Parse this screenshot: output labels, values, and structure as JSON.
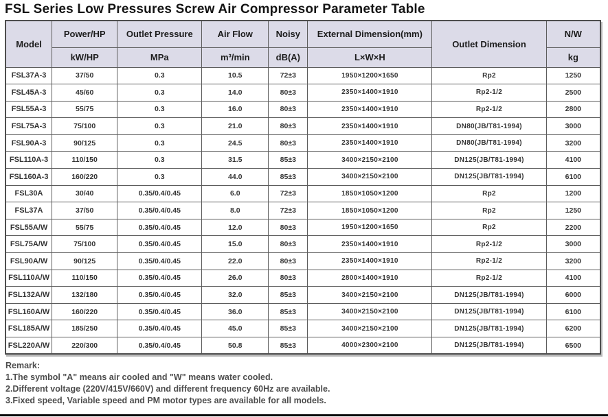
{
  "page": {
    "title": "FSL Series Low Pressures Screw Air Compressor Parameter Table"
  },
  "colors": {
    "header_bg": "#dcdbe8",
    "border": "#5c5c5c",
    "body_text": "#333333",
    "remark_text": "#4d4d4d"
  },
  "table": {
    "headers": {
      "model": "Model",
      "power": "Power/HP",
      "power_unit": "kW/HP",
      "pressure": "Outlet Pressure",
      "pressure_unit": "MPa",
      "airflow": "Air Flow",
      "airflow_unit": "m³/min",
      "noisy": "Noisy",
      "noisy_unit": "dB(A)",
      "external": "External Dimension(mm)",
      "external_unit": "L×W×H",
      "outlet": "Outlet Dimension",
      "nw": "N/W",
      "nw_unit": "kg"
    },
    "column_keys": [
      "model",
      "power",
      "pressure",
      "airflow",
      "noisy",
      "external",
      "outlet",
      "nw"
    ],
    "rows": [
      [
        "FSL37A-3",
        "37/50",
        "0.3",
        "10.5",
        "72±3",
        "1950×1200×1650",
        "Rp2",
        "1250"
      ],
      [
        "FSL45A-3",
        "45/60",
        "0.3",
        "14.0",
        "80±3",
        "2350×1400×1910",
        "Rp2-1/2",
        "2500"
      ],
      [
        "FSL55A-3",
        "55/75",
        "0.3",
        "16.0",
        "80±3",
        "2350×1400×1910",
        "Rp2-1/2",
        "2800"
      ],
      [
        "FSL75A-3",
        "75/100",
        "0.3",
        "21.0",
        "80±3",
        "2350×1400×1910",
        "DN80(JB/T81-1994)",
        "3000"
      ],
      [
        "FSL90A-3",
        "90/125",
        "0.3",
        "24.5",
        "80±3",
        "2350×1400×1910",
        "DN80(JB/T81-1994)",
        "3200"
      ],
      [
        "FSL110A-3",
        "110/150",
        "0.3",
        "31.5",
        "85±3",
        "3400×2150×2100",
        "DN125(JB/T81-1994)",
        "4100"
      ],
      [
        "FSL160A-3",
        "160/220",
        "0.3",
        "44.0",
        "85±3",
        "3400×2150×2100",
        "DN125(JB/T81-1994)",
        "6100"
      ],
      [
        "FSL30A",
        "30/40",
        "0.35/0.4/0.45",
        "6.0",
        "72±3",
        "1850×1050×1200",
        "Rp2",
        "1200"
      ],
      [
        "FSL37A",
        "37/50",
        "0.35/0.4/0.45",
        "8.0",
        "72±3",
        "1850×1050×1200",
        "Rp2",
        "1250"
      ],
      [
        "FSL55A/W",
        "55/75",
        "0.35/0.4/0.45",
        "12.0",
        "80±3",
        "1950×1200×1650",
        "Rp2",
        "2200"
      ],
      [
        "FSL75A/W",
        "75/100",
        "0.35/0.4/0.45",
        "15.0",
        "80±3",
        "2350×1400×1910",
        "Rp2-1/2",
        "3000"
      ],
      [
        "FSL90A/W",
        "90/125",
        "0.35/0.4/0.45",
        "22.0",
        "80±3",
        "2350×1400×1910",
        "Rp2-1/2",
        "3200"
      ],
      [
        "FSL110A/W",
        "110/150",
        "0.35/0.4/0.45",
        "26.0",
        "80±3",
        "2800×1400×1910",
        "Rp2-1/2",
        "4100"
      ],
      [
        "FSL132A/W",
        "132/180",
        "0.35/0.4/0.45",
        "32.0",
        "85±3",
        "3400×2150×2100",
        "DN125(JB/T81-1994)",
        "6000"
      ],
      [
        "FSL160A/W",
        "160/220",
        "0.35/0.4/0.45",
        "36.0",
        "85±3",
        "3400×2150×2100",
        "DN125(JB/T81-1994)",
        "6100"
      ],
      [
        "FSL185A/W",
        "185/250",
        "0.35/0.4/0.45",
        "45.0",
        "85±3",
        "3400×2150×2100",
        "DN125(JB/T81-1994)",
        "6200"
      ],
      [
        "FSL220A/W",
        "220/300",
        "0.35/0.4/0.45",
        "50.8",
        "85±3",
        "4000×2300×2100",
        "DN125(JB/T81-1994)",
        "6500"
      ]
    ]
  },
  "remark": {
    "heading": "Remark:",
    "lines": [
      "1.The symbol \"A\" means air cooled and \"W\" means water cooled.",
      "2.Different voltage (220V/415V/660V) and different frequency 60Hz are available.",
      "3.Fixed speed, Variable speed and PM motor types are available for all models."
    ]
  }
}
